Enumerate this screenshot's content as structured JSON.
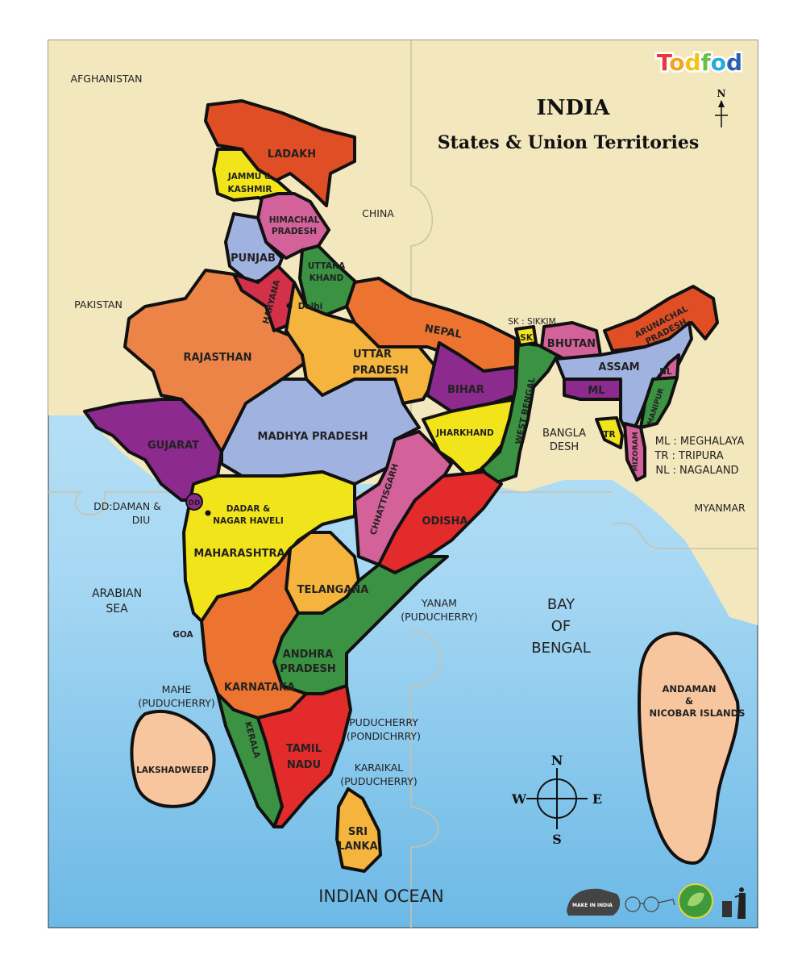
{
  "brand": {
    "logo_text": "Todfod",
    "logo_colors": [
      "#e8373f",
      "#f4a21d",
      "#f1c31b",
      "#6cbf44",
      "#27a8e0",
      "#2c5fb0"
    ]
  },
  "title": {
    "main": "INDIA",
    "subtitle": "States & Union Territories"
  },
  "north_arrow": "N",
  "compass": {
    "n": "N",
    "s": "S",
    "e": "E",
    "w": "W"
  },
  "colors": {
    "land": "#f3e7bd",
    "sea": "#9fd3f0",
    "border": "#111111"
  },
  "states": {
    "ladakh": "LADAKH",
    "jk": [
      "JAMMU &",
      "KASHMIR"
    ],
    "himachal": [
      "HIMACHAL",
      "PRADESH"
    ],
    "punjab": "PUNJAB",
    "uttarakhand": [
      "UTTARA",
      "KHAND"
    ],
    "haryana": "HARYANA",
    "delhi": "Delhi",
    "rajasthan": "RAJASTHAN",
    "up": [
      "UTTAR",
      "PRADESH"
    ],
    "mp": "MADHYA PRADESH",
    "bihar": "BIHAR",
    "jharkhand": "JHARKHAND",
    "west_bengal": "WEST BENGAL",
    "chhattisgarh": "CHHATTISGARH",
    "odisha": "ODISHA",
    "gujarat": "GUJARAT",
    "dd": "DD",
    "dadar": [
      "DADAR &",
      "NAGAR HAVELI"
    ],
    "maharashtra": "MAHARASHTRA",
    "telangana": "TELANGANA",
    "andhra": [
      "ANDHRA",
      "PRADESH"
    ],
    "goa": "GOA",
    "karnataka": "KARNATAKA",
    "kerala": "KERALA",
    "tamil_nadu": [
      "TAMIL",
      "NADU"
    ],
    "sikkim": "SK",
    "assam": "ASSAM",
    "arunachal": [
      "ARUNACHAL",
      "PRADESH"
    ],
    "meghalaya": "ML",
    "nagaland": "NL",
    "manipur": "MANIPUR",
    "mizoram": "MIZORAM",
    "tripura": "TR",
    "lakshadweep": "LAKSHADWEEP",
    "andaman": [
      "ANDAMAN",
      "&",
      "NICOBAR ISLANDS"
    ]
  },
  "neighbours": {
    "afghanistan": "AFGHANISTAN",
    "pakistan": "PAKISTAN",
    "china": "CHINA",
    "nepal": "NEPAL",
    "bhutan": "BHUTAN",
    "bangladesh": [
      "BANGLA",
      "DESH"
    ],
    "myanmar": "MYANMAR",
    "sri_lanka": [
      "SRI",
      "LANKA"
    ]
  },
  "seas": {
    "arabian": [
      "ARABIAN",
      "SEA"
    ],
    "bay": [
      "BAY",
      "OF",
      "BENGAL"
    ],
    "indian_ocean": "INDIAN OCEAN"
  },
  "notes": {
    "sikkim_key": "SK : SIKKIM",
    "legend": [
      "ML : MEGHALAYA",
      "TR : TRIPURA",
      "NL : NAGALAND"
    ],
    "dd_key": [
      "DD:DAMAN &",
      "DIU"
    ],
    "yanam": [
      "YANAM",
      "(PUDUCHERRY)"
    ],
    "mahe": [
      "MAHE",
      "(PUDUCHERRY)"
    ],
    "puducherry": [
      "PUDUCHERRY",
      "(PONDICHRRY)"
    ],
    "karaikal": [
      "KARAIKAL",
      "(PUDUCHERRY)"
    ]
  },
  "footer_badges": [
    "MAKE IN INDIA",
    "Swachh Bharat",
    "Eco-friendly",
    "Dispose in bin"
  ]
}
